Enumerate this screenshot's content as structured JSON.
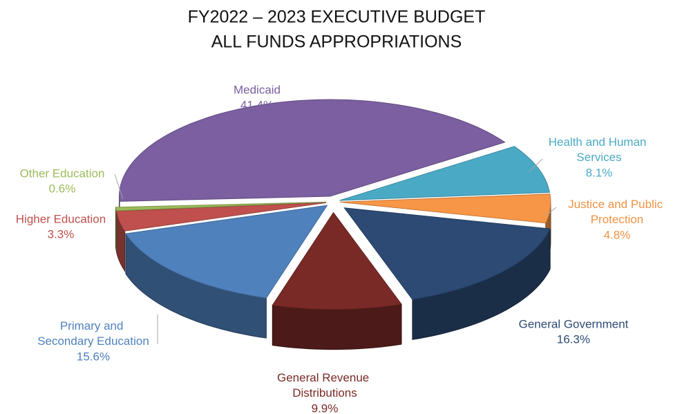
{
  "chart_data": {
    "type": "pie",
    "title": "FY2022 – 2023 EXECUTIVE BUDGET",
    "subtitle": "ALL FUNDS APPROPRIATIONS",
    "categories": [
      "Medicaid",
      "Health and Human Services",
      "Justice and Public Protection",
      "General Government",
      "General Revenue Distributions",
      "Primary and Secondary Education",
      "Higher Education",
      "Other Education"
    ],
    "values": [
      41.4,
      8.1,
      4.8,
      16.3,
      9.9,
      15.6,
      3.3,
      0.6
    ],
    "value_labels": [
      "41.4%",
      "8.1%",
      "4.8%",
      "16.3%",
      "9.9%",
      "15.6%",
      "3.3%",
      "0.6%"
    ],
    "colors": [
      "#7b5fa0",
      "#4aaac5",
      "#f79646",
      "#2c4a74",
      "#7a2a26",
      "#4f81bd",
      "#c0504d",
      "#9bbb59"
    ]
  }
}
